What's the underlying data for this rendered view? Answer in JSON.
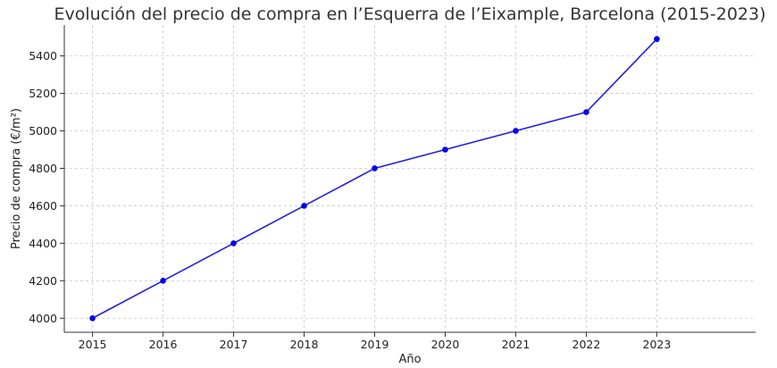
{
  "chart_data": {
    "type": "line",
    "title": "Evolución del precio de compra en l’Esquerra de l’Eixample, Barcelona (2015-2023)",
    "xlabel": "Año",
    "ylabel": "Precio de compra (€/m²)",
    "x": [
      2015,
      2016,
      2017,
      2018,
      2019,
      2020,
      2021,
      2022,
      2023
    ],
    "series": [
      {
        "values": [
          4000,
          4200,
          4400,
          4600,
          4800,
          4900,
          5000,
          5100,
          5490
        ]
      }
    ],
    "xticks": [
      "2015",
      "2016",
      "2017",
      "2018",
      "2019",
      "2020",
      "2021",
      "2022",
      "2023"
    ],
    "yticks": [
      "4000",
      "4200",
      "4400",
      "4600",
      "4800",
      "5000",
      "5200",
      "5400"
    ],
    "xlim": [
      2014.6,
      2024.4
    ],
    "ylim": [
      3925,
      5565
    ],
    "grid": true,
    "line_color": "#1f1fe0",
    "marker_color": "#0000ee"
  }
}
